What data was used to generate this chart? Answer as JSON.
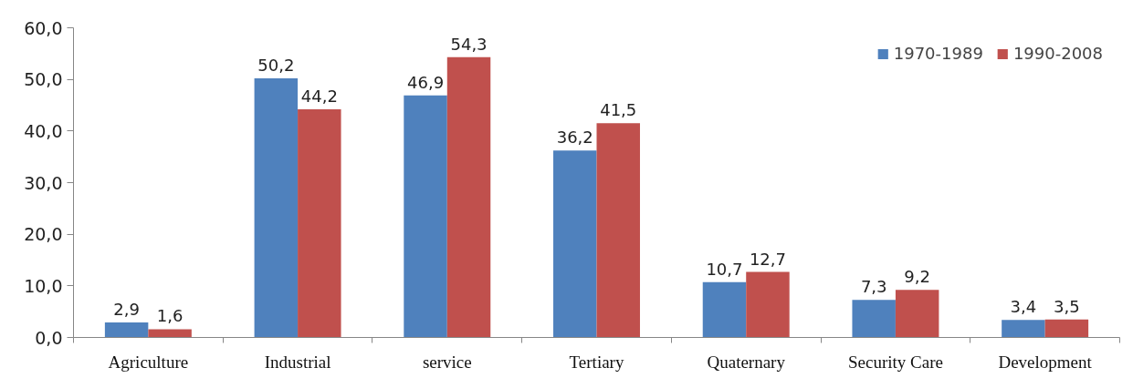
{
  "chart_data": {
    "type": "bar",
    "categories": [
      "Agriculture",
      "Industrial",
      "service",
      "Tertiary",
      "Quaternary",
      "Security Care",
      "Development"
    ],
    "series": [
      {
        "name": "1970-1989",
        "color": "#4f81bd",
        "values": [
          2.9,
          50.2,
          46.9,
          36.2,
          10.7,
          7.3,
          3.4
        ],
        "value_labels": [
          "2,9",
          "50,2",
          "46,9",
          "36,2",
          "10,7",
          "7,3",
          "3,4"
        ]
      },
      {
        "name": "1990-2008",
        "color": "#c0504d",
        "values": [
          1.6,
          44.2,
          54.3,
          41.5,
          12.7,
          9.2,
          3.5
        ],
        "value_labels": [
          "1,6",
          "44,2",
          "54,3",
          "41,5",
          "12,7",
          "9,2",
          "3,5"
        ]
      }
    ],
    "ylim": [
      0,
      60
    ],
    "yticks": [
      {
        "value": 0,
        "label": "0,0"
      },
      {
        "value": 10,
        "label": "10,0"
      },
      {
        "value": 20,
        "label": "20,0"
      },
      {
        "value": 30,
        "label": "30,0"
      },
      {
        "value": 40,
        "label": "40,0"
      },
      {
        "value": 50,
        "label": "50,0"
      },
      {
        "value": 60,
        "label": "60,0"
      }
    ],
    "grid": false,
    "legend": "top right"
  }
}
